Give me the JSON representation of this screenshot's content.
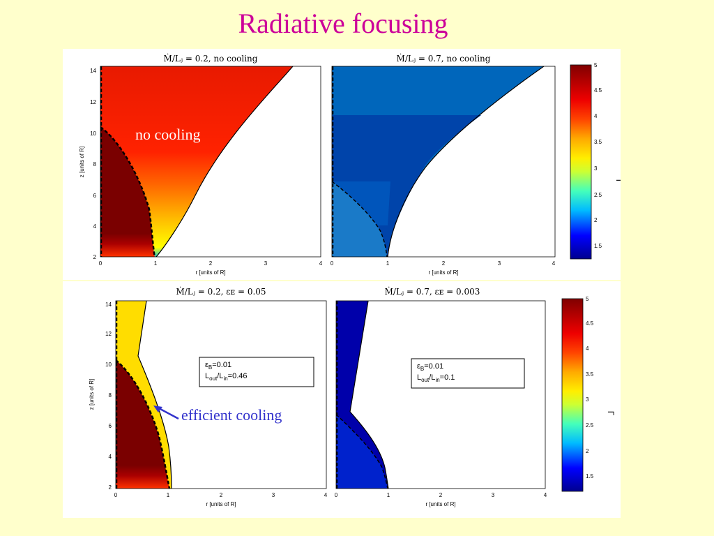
{
  "slide": {
    "title": "Radiative focusing"
  },
  "panels": [
    {
      "id": "top-left",
      "title": "Ṁ/Lⱼ = 0.2, no cooling",
      "fill": "red-gradient"
    },
    {
      "id": "top-right",
      "title": "Ṁ/Lⱼ = 0.7, no cooling",
      "fill": "blue-bands"
    },
    {
      "id": "bottom-left",
      "title": "Ṁ/Lⱼ = 0.2, εᴇ = 0.05",
      "fill": "yellow-red"
    },
    {
      "id": "bottom-right",
      "title": "Ṁ/Lⱼ = 0.7, εᴇ = 0.003",
      "fill": "dark-blue"
    }
  ],
  "axes": {
    "xlabel": "r [units of R]",
    "ylabel": "z [units of R]",
    "x_ticks": [
      "0",
      "1",
      "2",
      "3",
      "4"
    ],
    "y_ticks": [
      "2",
      "4",
      "6",
      "8",
      "10",
      "12",
      "14"
    ],
    "xlim": [
      0,
      4
    ],
    "ylim": [
      1.8,
      14.4
    ]
  },
  "colorbar": {
    "label": "Γ",
    "ticks": [
      "1.5",
      "2",
      "2.5",
      "3",
      "3.5",
      "4",
      "4.5",
      "5"
    ],
    "range": [
      1.25,
      5
    ]
  },
  "annotations": {
    "no_cooling": "no cooling",
    "efficient_cooling": "efficient cooling"
  },
  "info_boxes": [
    {
      "eps": "ε",
      "eps_sub": "B",
      "eps_val": "=0.01",
      "l_out": "L",
      "l_out_sub": "out",
      "slash": "/L",
      "l_in_sub": "in",
      "l_val": "=0.46"
    },
    {
      "eps": "ε",
      "eps_sub": "B",
      "eps_val": "=0.01",
      "l_out": "L",
      "l_out_sub": "out",
      "slash": "/L",
      "l_in_sub": "in",
      "l_val": "=0.1"
    }
  ],
  "colors": {
    "title": "#cc0099",
    "no_cooling_text": "#ffffff",
    "efficient_cooling_text": "#3333cc",
    "dark_red": "#7a0000",
    "red": "#e81a00",
    "blue_mid": "#0066bb",
    "blue_dark": "#0044aa",
    "navy": "#0000aa",
    "yellow": "#ffdd00"
  }
}
